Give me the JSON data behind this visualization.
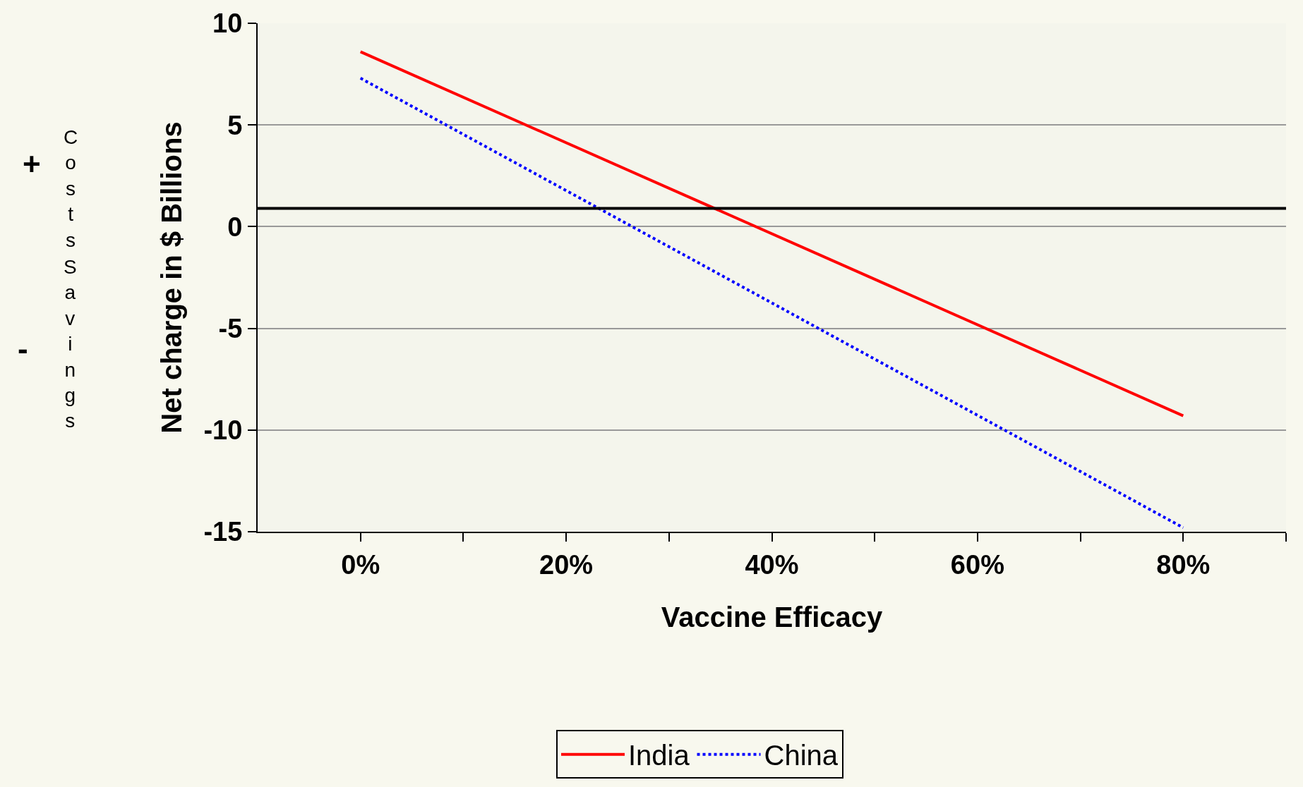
{
  "chart_data": {
    "type": "line",
    "xlabel": "Vaccine Efficacy",
    "ylabel": "Net charge in $ Billions",
    "xlim": [
      -10,
      90
    ],
    "xticks": [
      {
        "value": 0,
        "label": "0%"
      },
      {
        "value": 10,
        "label": null
      },
      {
        "value": 20,
        "label": "20%"
      },
      {
        "value": 30,
        "label": null
      },
      {
        "value": 40,
        "label": "40%"
      },
      {
        "value": 50,
        "label": null
      },
      {
        "value": 60,
        "label": "60%"
      },
      {
        "value": 70,
        "label": null
      },
      {
        "value": 80,
        "label": "80%"
      },
      {
        "value": 90,
        "label": null
      }
    ],
    "ylim": [
      -15,
      10
    ],
    "yticks": [
      -15,
      -10,
      -5,
      0,
      5,
      10
    ],
    "grid": "y",
    "legend": "bottom",
    "x": [
      0,
      80
    ],
    "series": [
      {
        "name": "India",
        "color": "#ff0000",
        "values": [
          8.6,
          -9.3
        ],
        "line_style": "solid"
      },
      {
        "name": "China",
        "color": "#0000ff",
        "values": [
          7.3,
          -14.8
        ],
        "line_style": "dotted"
      }
    ],
    "ref_lines": [
      {
        "axis": "y",
        "value": 0.9,
        "color": "#000000"
      }
    ],
    "annotations": [
      "+",
      "Costs",
      "Savings",
      "-"
    ]
  }
}
